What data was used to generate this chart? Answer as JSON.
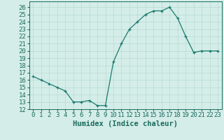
{
  "x": [
    0,
    1,
    2,
    3,
    4,
    5,
    6,
    7,
    8,
    9,
    10,
    11,
    12,
    13,
    14,
    15,
    16,
    17,
    18,
    19,
    20,
    21,
    22,
    23
  ],
  "y": [
    16.5,
    16.0,
    15.5,
    15.0,
    14.5,
    13.0,
    13.0,
    13.2,
    12.5,
    12.5,
    18.5,
    21.0,
    23.0,
    24.0,
    25.0,
    25.5,
    25.5,
    26.0,
    24.5,
    22.0,
    19.8,
    20.0,
    20.0,
    20.0
  ],
  "line_color": "#1a7a6e",
  "marker": "+",
  "bg_color": "#d4ede8",
  "grid_color": "#b8dad4",
  "xlabel": "Humidex (Indice chaleur)",
  "ylabel_ticks": [
    12,
    13,
    14,
    15,
    16,
    17,
    18,
    19,
    20,
    21,
    22,
    23,
    24,
    25,
    26
  ],
  "xlim": [
    -0.5,
    23.5
  ],
  "ylim": [
    12,
    26.8
  ],
  "xticks": [
    0,
    1,
    2,
    3,
    4,
    5,
    6,
    7,
    8,
    9,
    10,
    11,
    12,
    13,
    14,
    15,
    16,
    17,
    18,
    19,
    20,
    21,
    22,
    23
  ],
  "tick_fontsize": 6.5,
  "xlabel_fontsize": 7.5,
  "label_color": "#1a6b5e"
}
